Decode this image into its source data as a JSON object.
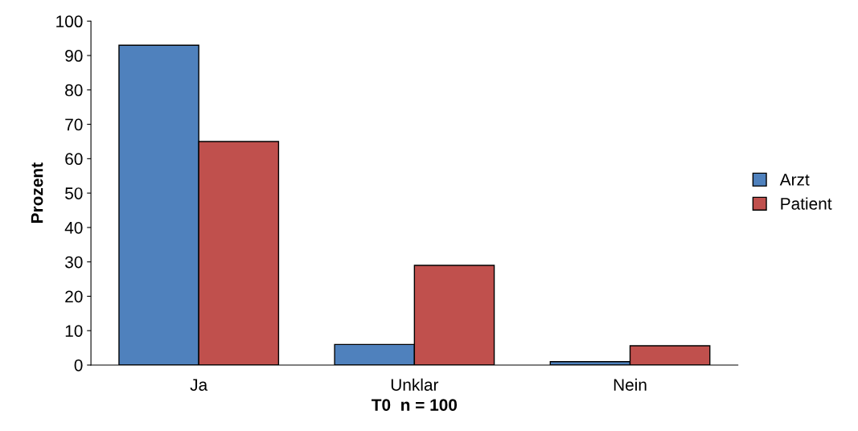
{
  "chart_data": {
    "type": "bar",
    "xlabel": "T0  n = 100",
    "ylabel": "Prozent",
    "categories": [
      "Ja",
      "Unklar",
      "Nein"
    ],
    "series": [
      {
        "name": "Arzt",
        "color": "#4f81bd",
        "values": [
          93,
          6,
          1
        ]
      },
      {
        "name": "Patient",
        "color": "#c0504d",
        "values": [
          65,
          29,
          5.6
        ]
      }
    ],
    "ylim": [
      0,
      100
    ],
    "yticks": [
      0,
      10,
      20,
      30,
      40,
      50,
      60,
      70,
      80,
      90,
      100
    ],
    "grid": false,
    "legend": "right"
  }
}
